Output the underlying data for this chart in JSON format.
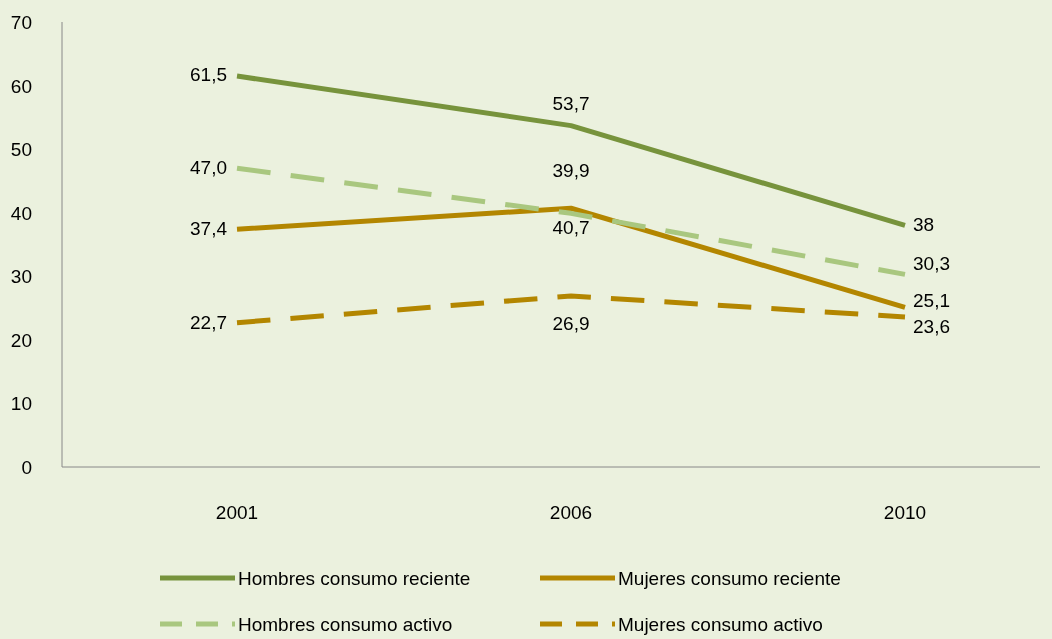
{
  "chart_data": {
    "type": "line",
    "categories": [
      "2001",
      "2006",
      "2010"
    ],
    "series": [
      {
        "name": "Hombres consumo reciente",
        "color": "#77933c",
        "line_style": "solid",
        "values": [
          61.5,
          53.7,
          38
        ],
        "value_labels": [
          "61,5",
          "53,7",
          "38"
        ]
      },
      {
        "name": "Mujeres consumo reciente",
        "color": "#b38600",
        "line_style": "solid",
        "values": [
          37.4,
          40.7,
          25.1
        ],
        "value_labels": [
          "37,4",
          "40,7",
          "25,1"
        ]
      },
      {
        "name": "Hombres consumo activo",
        "color": "#a9c77f",
        "line_style": "dashed",
        "values": [
          47.0,
          39.9,
          30.3
        ],
        "value_labels": [
          "47,0",
          "39,9",
          "30,3"
        ]
      },
      {
        "name": "Mujeres consumo activo",
        "color": "#b38600",
        "line_style": "dashed",
        "values": [
          22.7,
          26.9,
          23.6
        ],
        "value_labels": [
          "22,7",
          "26,9",
          "23,6"
        ]
      }
    ],
    "ylim": [
      0,
      70
    ],
    "yticks": [
      0,
      10,
      20,
      30,
      40,
      50,
      60,
      70
    ],
    "grid": false,
    "legend": "bottom",
    "marker": "none"
  }
}
